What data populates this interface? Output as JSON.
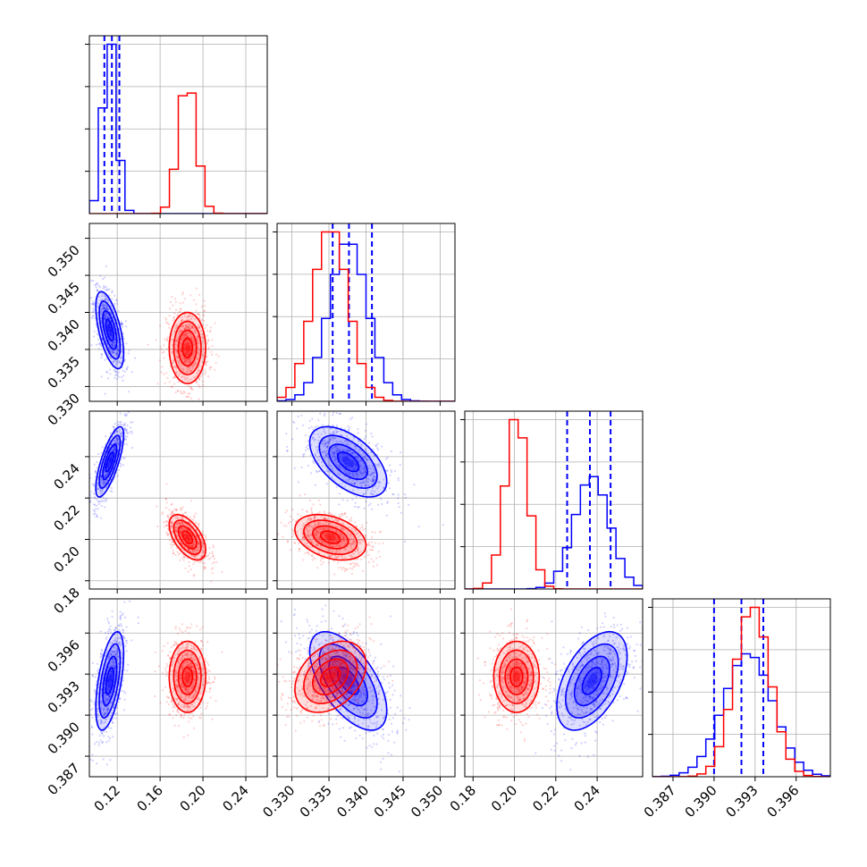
{
  "colors": {
    "blue": "#0000ff",
    "red": "#ff0000",
    "grid": "#b0b0b0",
    "axis": "#000000"
  },
  "chart_data": {
    "type": "corner",
    "grid": true,
    "parameters": [
      {
        "range": [
          0.094,
          0.26
        ],
        "ticks": [
          "0.12",
          "0.16",
          "0.20",
          "0.24"
        ],
        "tick_values": [
          0.12,
          0.16,
          0.2,
          0.24
        ]
      },
      {
        "range": [
          0.328,
          0.352
        ],
        "ticks": [
          "0.330",
          "0.335",
          "0.340",
          "0.345",
          "0.350"
        ],
        "tick_values": [
          0.33,
          0.335,
          0.34,
          0.345,
          0.35
        ]
      },
      {
        "range": [
          0.176,
          0.262
        ],
        "ticks": [
          "0.18",
          "0.20",
          "0.22",
          "0.24"
        ],
        "tick_values": [
          0.18,
          0.2,
          0.22,
          0.24
        ]
      },
      {
        "range": [
          0.3855,
          0.3985
        ],
        "ticks": [
          "0.387",
          "0.390",
          "0.393",
          "0.396"
        ],
        "tick_values": [
          0.387,
          0.39,
          0.393,
          0.396
        ]
      }
    ],
    "series": [
      {
        "color": "blue",
        "means": [
          0.113,
          0.3376,
          0.2375,
          0.3925
        ],
        "sigmas": [
          0.0065,
          0.0026,
          0.0085,
          0.0018
        ],
        "corr": {
          "0-1": -0.6,
          "0-2": 0.75,
          "0-3": 0.55,
          "1-2": -0.55,
          "1-3": -0.6,
          "2-3": 0.5
        },
        "quantiles": [
          [
            0.108,
            0.115,
            0.122
          ],
          [
            0.3355,
            0.3377,
            0.3408
          ],
          [
            0.2255,
            0.2365,
            0.2465
          ],
          [
            0.39,
            0.392,
            0.3936
          ]
        ]
      },
      {
        "color": "red",
        "means": [
          0.1855,
          0.3352,
          0.201,
          0.3928
        ],
        "sigmas": [
          0.0085,
          0.0024,
          0.0055,
          0.0013
        ],
        "corr": {
          "0-1": 0.0,
          "0-2": -0.55,
          "0-3": 0.0,
          "1-2": -0.35,
          "1-3": 0.35,
          "2-3": 0.0
        }
      }
    ]
  }
}
